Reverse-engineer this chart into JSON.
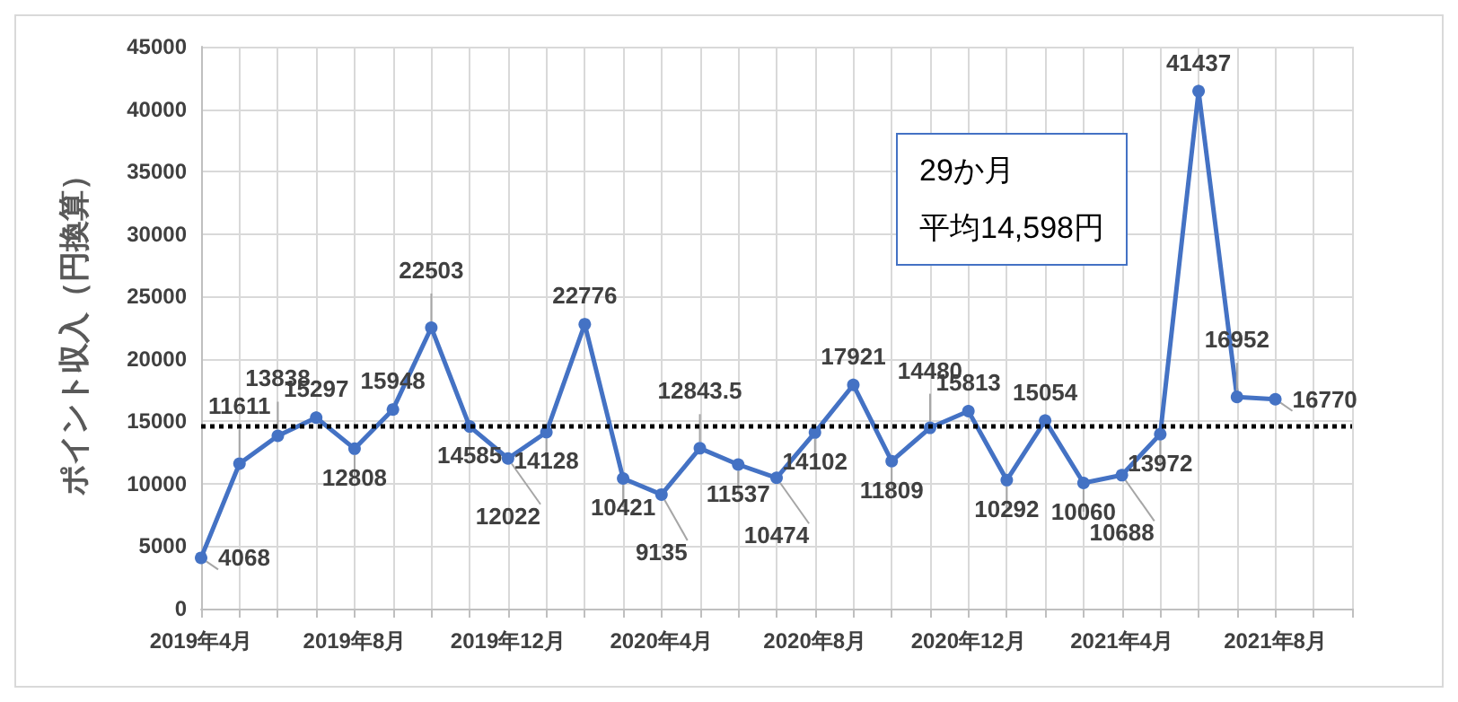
{
  "chart_data": {
    "type": "line",
    "ylabel": "ポイント収入（円換算）",
    "x": [
      "2019-04",
      "2019-05",
      "2019-06",
      "2019-07",
      "2019-08",
      "2019-09",
      "2019-10",
      "2019-11",
      "2019-12",
      "2020-01",
      "2020-02",
      "2020-03",
      "2020-04",
      "2020-05",
      "2020-06",
      "2020-07",
      "2020-08",
      "2020-09",
      "2020-10",
      "2020-11",
      "2020-12",
      "2021-01",
      "2021-02",
      "2021-03",
      "2021-04",
      "2021-05",
      "2021-06",
      "2021-07",
      "2021-08"
    ],
    "series": [
      {
        "color": "#4472c4",
        "values": [
          4068,
          11611,
          13838,
          15297,
          12808,
          15948,
          22503,
          14585,
          12022,
          14128,
          22776,
          10421,
          9135,
          12843.5,
          11537,
          10474,
          14102,
          17921,
          11809,
          14480,
          15813,
          10292,
          15054,
          10060,
          10688,
          13972,
          41437,
          16952,
          16770
        ]
      }
    ],
    "xlim": [
      "2019-04",
      "2021-10"
    ],
    "xticks": [
      {
        "value": "2019-04",
        "label": "2019年4月"
      },
      {
        "value": "2019-08",
        "label": "2019年8月"
      },
      {
        "value": "2019-12",
        "label": "2019年12月"
      },
      {
        "value": "2020-04",
        "label": "2020年4月"
      },
      {
        "value": "2020-08",
        "label": "2020年8月"
      },
      {
        "value": "2020-12",
        "label": "2020年12月"
      },
      {
        "value": "2021-04",
        "label": "2021年4月"
      },
      {
        "value": "2021-08",
        "label": "2021年8月"
      }
    ],
    "ylim": [
      0,
      45000
    ],
    "yticks": [
      0,
      5000,
      10000,
      15000,
      20000,
      25000,
      30000,
      35000,
      40000,
      45000
    ],
    "ref_lines": [
      {
        "axis": "y",
        "value": 14598,
        "color": "#000000",
        "line_style": "dotted"
      }
    ],
    "annotations": [
      "29か月",
      "平均14,598円"
    ],
    "data_labels": true,
    "grid": true,
    "marker": "circle",
    "line_style": "solid"
  }
}
